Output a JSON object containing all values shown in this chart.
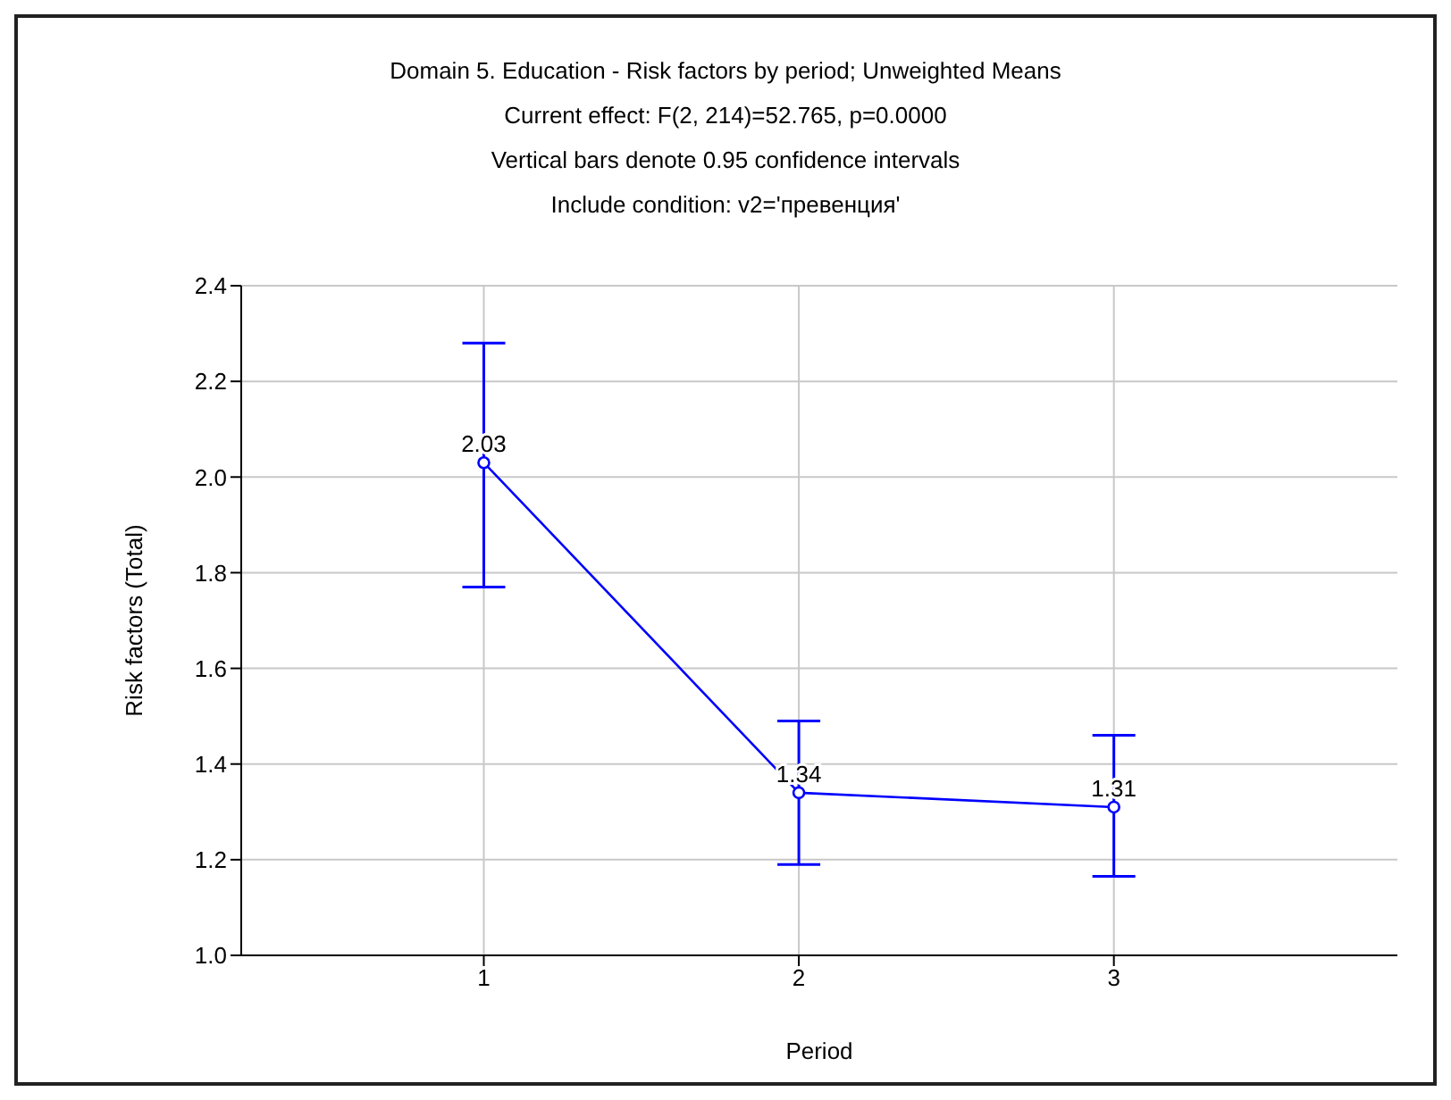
{
  "chart_data": {
    "type": "line",
    "title": "Domain 5. Education - Risk factors by period; Unweighted Means",
    "subtitle": "Current effect: F(2, 214)=52.765, p=0.0000\nVertical bars denote 0.95 confidence intervals\nInclude condition: v2='превенция'",
    "xlabel": "Period",
    "ylabel": "Risk factors (Total)",
    "x": [
      1,
      2,
      3
    ],
    "xlim": [
      0.23,
      3.9
    ],
    "xticks": [
      1,
      2,
      3
    ],
    "ylim": [
      1.0,
      2.4
    ],
    "yticks": [
      {
        "value": 1,
        "label": "1.0"
      },
      1.2,
      1.4,
      1.6,
      1.8,
      {
        "value": 2,
        "label": "2.0"
      },
      2.2,
      2.4
    ],
    "series": [
      {
        "color": "#0000ff",
        "values": [
          2.03,
          1.34,
          1.31
        ],
        "errors": [
          [
            1.77,
            2.28
          ],
          [
            1.19,
            1.49
          ],
          [
            1.165,
            1.46
          ]
        ]
      }
    ],
    "data_labels": true,
    "grid": true,
    "marker": "circle",
    "line_style": "solid",
    "legend": false
  }
}
